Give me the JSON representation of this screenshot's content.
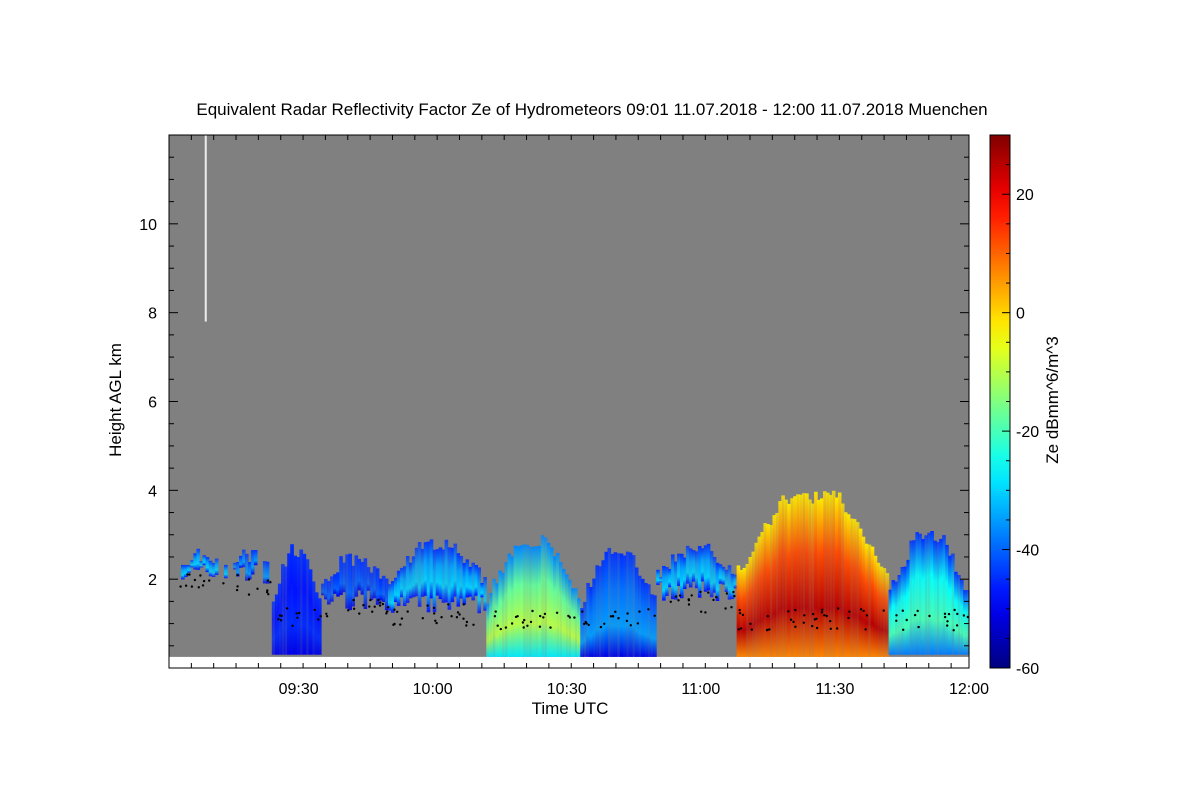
{
  "chart_data": {
    "type": "heatmap",
    "title": "Equivalent Radar Reflectivity Factor Ze of Hydrometeors   09:01 11.07.2018 - 12:00 11.07.2018 Muenchen",
    "xlabel": "Time UTC",
    "ylabel": "Height AGL km",
    "xlim": [
      "09:01",
      "12:00"
    ],
    "ylim": [
      0,
      12
    ],
    "x_ticks": [
      "09:30",
      "10:00",
      "10:30",
      "11:00",
      "11:30",
      "12:00"
    ],
    "y_ticks": [
      2,
      4,
      6,
      8,
      10
    ],
    "colorbar": {
      "label": "Ze dBmm^6/m^3",
      "range": [
        -60,
        30
      ],
      "ticks": [
        20,
        0,
        -20,
        -40,
        -60
      ],
      "colormap": "jet"
    },
    "background_color": "#808080",
    "cloud_base_points_color": "#000000",
    "cloud_segments": [
      {
        "start": "09:03",
        "end": "09:14",
        "top_km": 2.7,
        "bottom_km": 1.9,
        "peak_dbz": -30
      },
      {
        "start": "09:14",
        "end": "09:24",
        "top_km": 2.7,
        "bottom_km": 1.9,
        "peak_dbz": -35
      },
      {
        "start": "09:24",
        "end": "09:35",
        "top_km": 2.8,
        "bottom_km": 0.3,
        "peak_dbz": -45
      },
      {
        "start": "09:35",
        "end": "09:50",
        "top_km": 2.6,
        "bottom_km": 1.3,
        "peak_dbz": -40
      },
      {
        "start": "09:50",
        "end": "10:12",
        "top_km": 2.9,
        "bottom_km": 1.2,
        "peak_dbz": -30
      },
      {
        "start": "10:12",
        "end": "10:33",
        "top_km": 3.0,
        "bottom_km": 0.0,
        "peak_dbz": -10
      },
      {
        "start": "10:33",
        "end": "10:50",
        "top_km": 2.8,
        "bottom_km": 0.0,
        "peak_dbz": -35
      },
      {
        "start": "10:50",
        "end": "11:08",
        "top_km": 2.8,
        "bottom_km": 1.5,
        "peak_dbz": -30
      },
      {
        "start": "11:08",
        "end": "11:42",
        "top_km": 4.0,
        "bottom_km": 0.0,
        "peak_dbz": 25
      },
      {
        "start": "11:42",
        "end": "12:00",
        "top_km": 3.1,
        "bottom_km": 0.3,
        "peak_dbz": -20
      }
    ]
  }
}
